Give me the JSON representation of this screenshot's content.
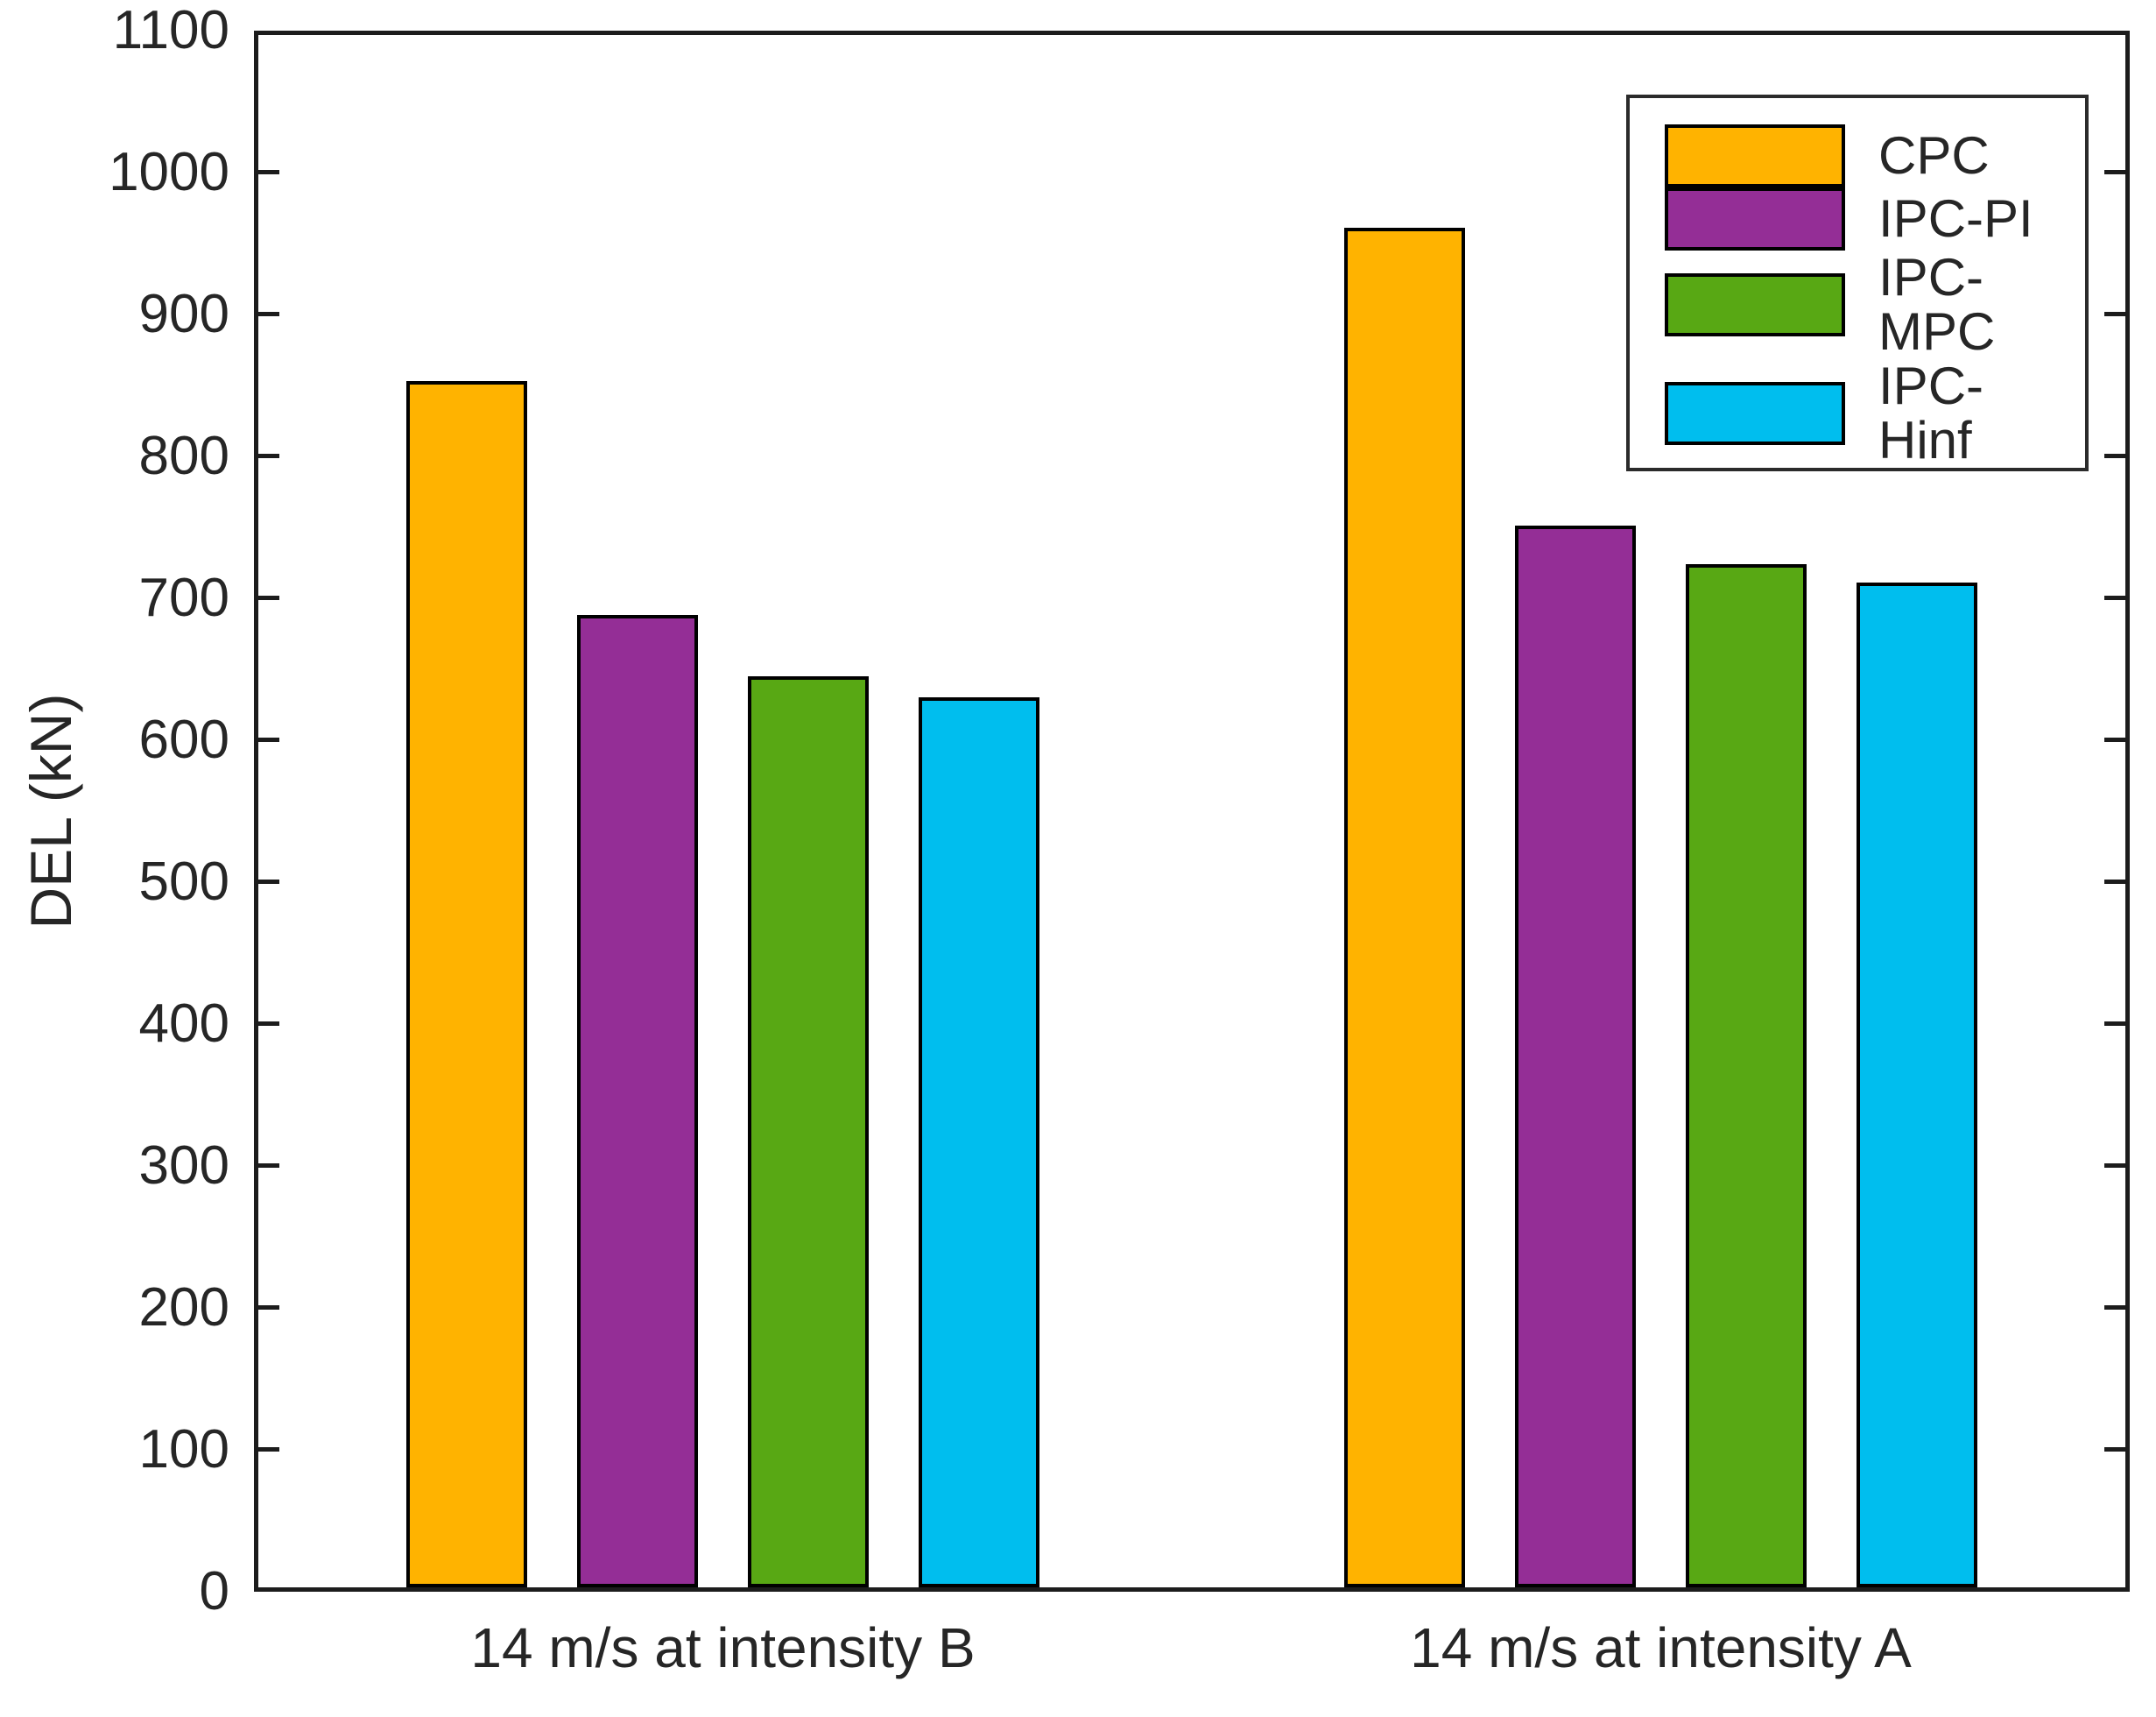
{
  "figure": {
    "background": "#ffffff",
    "axis_color": "#1c1c1c",
    "text_color": "#262626"
  },
  "chart_data": {
    "type": "bar",
    "title": "",
    "xlabel": "",
    "ylabel": "DEL (kN)",
    "categories": [
      "14 m/s at intensity B",
      "14 m/s at intensity A"
    ],
    "series": [
      {
        "name": "CPC",
        "color": "#FFB300",
        "values": [
          850,
          958
        ]
      },
      {
        "name": "IPC-PI",
        "color": "#942E96",
        "values": [
          685,
          748
        ]
      },
      {
        "name": "IPC-MPC",
        "color": "#58A814",
        "values": [
          642,
          721
        ]
      },
      {
        "name": "IPC-Hinf",
        "color": "#00BEEE",
        "values": [
          627,
          708
        ]
      }
    ],
    "ylim": [
      0,
      1100
    ],
    "ytick_step": 100,
    "ytick_labels": [
      "0",
      "100",
      "200",
      "300",
      "400",
      "500",
      "600",
      "700",
      "800",
      "900",
      "1000",
      "1100"
    ],
    "grid": false,
    "box": true,
    "tick_direction": "in",
    "bar_edge_color": "#000000",
    "legend_position": "top-right",
    "legend_entries": [
      "CPC",
      "IPC-PI",
      "IPC-MPC",
      "IPC-Hinf"
    ]
  }
}
